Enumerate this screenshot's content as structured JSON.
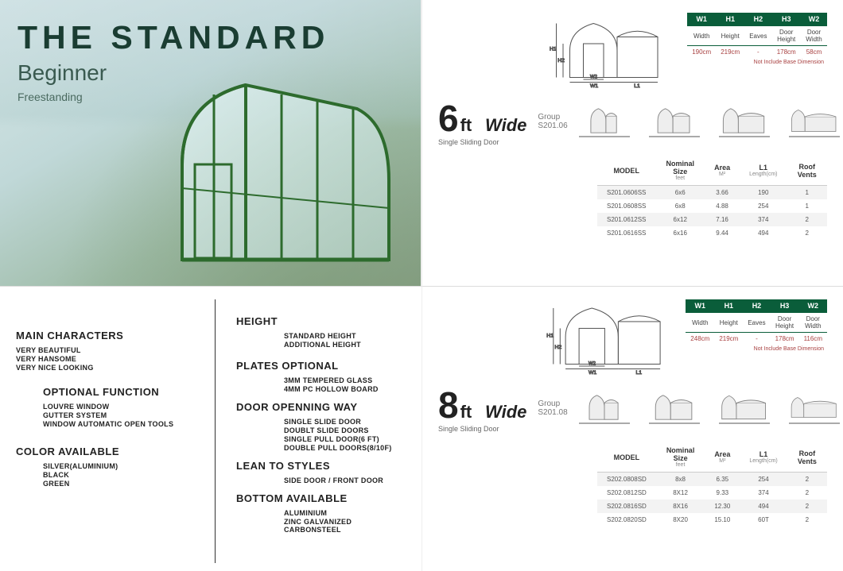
{
  "hero": {
    "title": "THE STANDARD",
    "subtitle": "Beginner",
    "tag": "Freestanding",
    "frame_color": "#2d6b2d"
  },
  "left_panel": {
    "main_characters": {
      "heading": "MAIN CHARACTERS",
      "items": [
        "VERY   BEAUTIFUL",
        "VERY   HANSOME",
        "VERY   NICE LOOKING"
      ]
    },
    "optional_function": {
      "heading": "OPTIONAL FUNCTION",
      "items": [
        "LOUVRE WINDOW",
        "GUTTER SYSTEM",
        "WINDOW AUTOMATIC OPEN TOOLS"
      ]
    },
    "color_available": {
      "heading": "COLOR AVAILABLE",
      "items": [
        "SILVER(ALUMINIUM)",
        "BLACK",
        "GREEN"
      ]
    }
  },
  "mid_panel": {
    "height": {
      "heading": "HEIGHT",
      "items": [
        "STANDARD HEIGHT",
        "ADDITIONAL HEIGHT"
      ]
    },
    "plates": {
      "heading": "PLATES OPTIONAL",
      "items": [
        "3MM TEMPERED GLASS",
        "4MM PC HOLLOW BOARD"
      ]
    },
    "door": {
      "heading": "DOOR OPENNING WAY",
      "items": [
        "SINGLE SLIDE DOOR",
        "DOUBLT SLIDE DOORS",
        "SINGLE PULL DOOR(6 FT)",
        "DOUBLE PULL DOORS(8/10F)"
      ]
    },
    "lean": {
      "heading": "LEAN TO STYLES",
      "items": [
        "SIDE DOOR / FRONT DOOR"
      ]
    },
    "bottom": {
      "heading": "BOTTOM AVAILABLE",
      "items": [
        "ALUMINIUM",
        "ZINC GALVANIZED CARBONSTEEL"
      ]
    }
  },
  "dim_header": {
    "cols": [
      "W1",
      "H1",
      "H2",
      "H3",
      "W2"
    ],
    "labels": [
      "Width",
      "Height",
      "Eaves",
      "Door Height",
      "Door Width"
    ]
  },
  "six": {
    "big": "6",
    "ft": "ft",
    "wide": "Wide",
    "sub": "Single Sliding Door",
    "group_label": "Group",
    "group_code": "S201.06",
    "dims": [
      "190cm",
      "219cm",
      "-",
      "178cm",
      "58cm"
    ],
    "note": "Not Include Base Dimension",
    "spec_head": [
      "MODEL",
      "Nominal Size",
      "Area",
      "L1",
      "Roof Vents"
    ],
    "spec_sub": [
      "",
      "feet",
      "M²",
      "Length(cm)",
      ""
    ],
    "rows": [
      [
        "S201.0606SS",
        "6x6",
        "3.66",
        "190",
        "1"
      ],
      [
        "S201.0608SS",
        "6x8",
        "4.88",
        "254",
        "1"
      ],
      [
        "S201.0612SS",
        "6x12",
        "7.16",
        "374",
        "2"
      ],
      [
        "S201.0616SS",
        "6x16",
        "9.44",
        "494",
        "2"
      ]
    ]
  },
  "eight": {
    "big": "8",
    "ft": "ft",
    "wide": "Wide",
    "sub": "Single Sliding Door",
    "group_label": "Group",
    "group_code": "S201.08",
    "dims": [
      "248cm",
      "219cm",
      "-",
      "178cm",
      "116cm"
    ],
    "note": "Not Include Base Dimension",
    "spec_head": [
      "MODEL",
      "Nominal Size",
      "Area",
      "L1",
      "Roof Vents"
    ],
    "spec_sub": [
      "",
      "feet",
      "M²",
      "Length(cm)",
      ""
    ],
    "rows": [
      [
        "S202.0808SD",
        "8x8",
        "6.35",
        "254",
        "2"
      ],
      [
        "S202.0812SD",
        "8X12",
        "9.33",
        "374",
        "2"
      ],
      [
        "S202.0816SD",
        "8X16",
        "12.30",
        "494",
        "2"
      ],
      [
        "S202.0820SD",
        "8X20",
        "15.10",
        "60T",
        "2"
      ]
    ]
  },
  "colors": {
    "accent": "#0a5d3a",
    "text": "#222",
    "muted": "#777",
    "note": "#a84040"
  }
}
